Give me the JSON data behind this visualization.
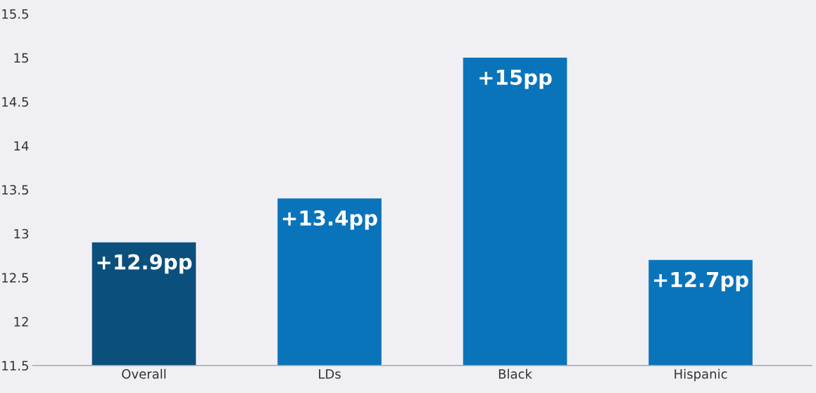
{
  "chart_data": {
    "type": "bar",
    "categories": [
      "Overall",
      "LDs",
      "Black",
      "Hispanic"
    ],
    "values": [
      12.9,
      13.4,
      15,
      12.7
    ],
    "colors": [
      "#0b4f7c",
      "#0a74bb",
      "#0a74bb",
      "#0a74bb"
    ],
    "value_labels": [
      "+12.9pp",
      "+13.4pp",
      "+15pp",
      "+12.7pp"
    ],
    "ylim": [
      11.5,
      15.5
    ],
    "yticks": [
      11.5,
      12,
      12.5,
      13,
      13.5,
      14,
      14.5,
      15,
      15.5
    ],
    "grid": false,
    "legend": false
  }
}
